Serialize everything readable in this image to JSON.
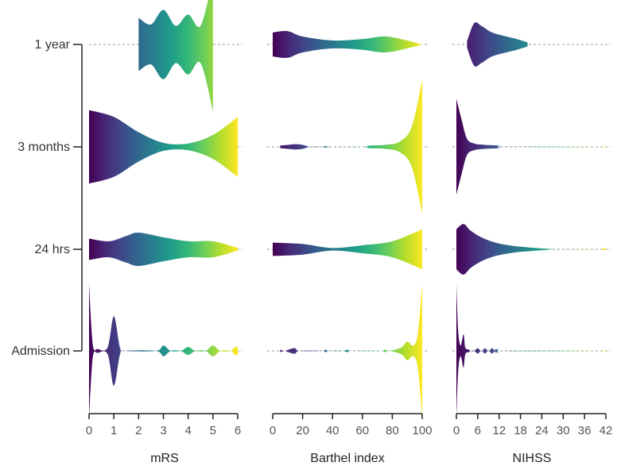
{
  "chart_data": {
    "type": "violin",
    "colormap": [
      "#440154",
      "#482878",
      "#3e4989",
      "#31688e",
      "#26828e",
      "#1f9e89",
      "#35b779",
      "#6ece58",
      "#b5de2b",
      "#fde725"
    ],
    "rows": [
      "1 year",
      "3 months",
      "24 hrs",
      "Admission"
    ],
    "panels": [
      {
        "name": "mRS",
        "xlim": [
          0,
          6
        ],
        "ticks": [
          0,
          1,
          2,
          3,
          4,
          5,
          6
        ],
        "tick_labels": [
          "0",
          "1",
          "2",
          "3",
          "4",
          "5",
          "6"
        ],
        "series": [
          {
            "row": "1 year",
            "range": [
              2,
              5
            ],
            "profile": [
              [
                2,
                0.4
              ],
              [
                2.5,
                0.3
              ],
              [
                3,
                0.52
              ],
              [
                3.5,
                0.28
              ],
              [
                4,
                0.45
              ],
              [
                4.5,
                0.28
              ],
              [
                5,
                1.0
              ]
            ]
          },
          {
            "row": "3 months",
            "range": [
              0,
              6
            ],
            "profile": [
              [
                0,
                0.55
              ],
              [
                1,
                0.45
              ],
              [
                2,
                0.22
              ],
              [
                3,
                0.06
              ],
              [
                4,
                0.05
              ],
              [
                5,
                0.18
              ],
              [
                6,
                0.45
              ]
            ]
          },
          {
            "row": "24 hrs",
            "range": [
              0,
              6
            ],
            "profile": [
              [
                0,
                0.16
              ],
              [
                0.8,
                0.12
              ],
              [
                1.5,
                0.2
              ],
              [
                2,
                0.25
              ],
              [
                3,
                0.18
              ],
              [
                4,
                0.12
              ],
              [
                5,
                0.12
              ],
              [
                6,
                0.02
              ]
            ]
          },
          {
            "row": "Admission",
            "range": [
              0,
              6
            ],
            "profile": [
              [
                0,
                1.0
              ],
              [
                0.15,
                0.1
              ],
              [
                0.35,
                0.03
              ],
              [
                0.75,
                0.05
              ],
              [
                1,
                0.52
              ],
              [
                1.25,
                0.05
              ],
              [
                1.45,
                0.0
              ],
              [
                2.7,
                0.0
              ],
              [
                3,
                0.08
              ],
              [
                3.3,
                0.0
              ],
              [
                3.7,
                0.0
              ],
              [
                4,
                0.06
              ],
              [
                4.3,
                0.0
              ],
              [
                4.7,
                0.0
              ],
              [
                5,
                0.08
              ],
              [
                5.3,
                0.0
              ],
              [
                5.7,
                0.0
              ],
              [
                5.9,
                0.06
              ],
              [
                6,
                0.05
              ]
            ]
          }
        ]
      },
      {
        "name": "Barthel index",
        "xlim": [
          0,
          100
        ],
        "ticks": [
          0,
          20,
          40,
          60,
          80,
          100
        ],
        "tick_labels": [
          "0",
          "20",
          "40",
          "60",
          "80",
          "100"
        ],
        "series": [
          {
            "row": "1 year",
            "range": [
              0,
              100
            ],
            "profile": [
              [
                0,
                0.18
              ],
              [
                10,
                0.2
              ],
              [
                20,
                0.12
              ],
              [
                40,
                0.06
              ],
              [
                60,
                0.08
              ],
              [
                75,
                0.12
              ],
              [
                90,
                0.06
              ],
              [
                100,
                0.0
              ]
            ]
          },
          {
            "row": "3 months",
            "range": [
              5,
              100
            ],
            "profile": [
              [
                5,
                0.02
              ],
              [
                10,
                0.03
              ],
              [
                15,
                0.04
              ],
              [
                20,
                0.03
              ],
              [
                25,
                0.0
              ],
              [
                33,
                0.0
              ],
              [
                35,
                0.01
              ],
              [
                40,
                0.0
              ],
              [
                60,
                0.0
              ],
              [
                65,
                0.02
              ],
              [
                75,
                0.03
              ],
              [
                85,
                0.08
              ],
              [
                93,
                0.3
              ],
              [
                100,
                1.0
              ]
            ]
          },
          {
            "row": "24 hrs",
            "range": [
              0,
              100
            ],
            "profile": [
              [
                0,
                0.1
              ],
              [
                20,
                0.08
              ],
              [
                40,
                0.02
              ],
              [
                60,
                0.06
              ],
              [
                80,
                0.12
              ],
              [
                100,
                0.3
              ]
            ]
          },
          {
            "row": "Admission",
            "range": [
              5,
              100
            ],
            "profile": [
              [
                5,
                0.02
              ],
              [
                8,
                0.0
              ],
              [
                12,
                0.03
              ],
              [
                15,
                0.04
              ],
              [
                18,
                0.0
              ],
              [
                33,
                0.0
              ],
              [
                35,
                0.02
              ],
              [
                38,
                0.0
              ],
              [
                47,
                0.0
              ],
              [
                50,
                0.02
              ],
              [
                53,
                0.0
              ],
              [
                72,
                0.0
              ],
              [
                75,
                0.02
              ],
              [
                78,
                0.0
              ],
              [
                86,
                0.05
              ],
              [
                90,
                0.14
              ],
              [
                94,
                0.08
              ],
              [
                97,
                0.25
              ],
              [
                100,
                1.0
              ]
            ]
          }
        ]
      },
      {
        "name": "NIHSS",
        "xlim": [
          0,
          42
        ],
        "ticks": [
          0,
          6,
          12,
          18,
          24,
          30,
          36,
          42
        ],
        "tick_labels": [
          "0",
          "6",
          "12",
          "18",
          "24",
          "30",
          "36",
          "42"
        ],
        "series": [
          {
            "row": "1 year",
            "range": [
              3,
              20
            ],
            "profile": [
              [
                3,
                0.05
              ],
              [
                5,
                0.32
              ],
              [
                7,
                0.28
              ],
              [
                10,
                0.18
              ],
              [
                14,
                0.12
              ],
              [
                17,
                0.08
              ],
              [
                20,
                0.03
              ]
            ]
          },
          {
            "row": "3 months",
            "range": [
              0,
              42
            ],
            "profile": [
              [
                0,
                0.72
              ],
              [
                1.5,
                0.4
              ],
              [
                3,
                0.12
              ],
              [
                5,
                0.05
              ],
              [
                8,
                0.03
              ],
              [
                12,
                0.02
              ],
              [
                14,
                0.0
              ],
              [
                40,
                0.0
              ],
              [
                41,
                0.02
              ],
              [
                42,
                0.01
              ]
            ]
          },
          {
            "row": "24 hrs",
            "range": [
              0,
              42
            ],
            "profile": [
              [
                0,
                0.3
              ],
              [
                2,
                0.38
              ],
              [
                4,
                0.28
              ],
              [
                7,
                0.18
              ],
              [
                11,
                0.1
              ],
              [
                16,
                0.05
              ],
              [
                20,
                0.03
              ],
              [
                25,
                0.01
              ],
              [
                29,
                0.0
              ],
              [
                40,
                0.0
              ],
              [
                41,
                0.01
              ],
              [
                42,
                0.01
              ]
            ]
          },
          {
            "row": "Admission",
            "range": [
              0,
              42
            ],
            "profile": [
              [
                0,
                1.0
              ],
              [
                0.5,
                0.3
              ],
              [
                1.2,
                0.08
              ],
              [
                2,
                0.25
              ],
              [
                2.5,
                0.05
              ],
              [
                3.5,
                0.02
              ],
              [
                4,
                0.0
              ],
              [
                5,
                0.0
              ],
              [
                6,
                0.04
              ],
              [
                6.8,
                0.0
              ],
              [
                7.3,
                0.0
              ],
              [
                8,
                0.04
              ],
              [
                8.8,
                0.0
              ],
              [
                9.2,
                0.0
              ],
              [
                10,
                0.04
              ],
              [
                10.8,
                0.0
              ],
              [
                11.3,
                0.0
              ],
              [
                12,
                0.03
              ],
              [
                12.7,
                0.0
              ],
              [
                40,
                0.0
              ],
              [
                41,
                0.02
              ],
              [
                42,
                0.01
              ]
            ]
          }
        ]
      }
    ]
  }
}
